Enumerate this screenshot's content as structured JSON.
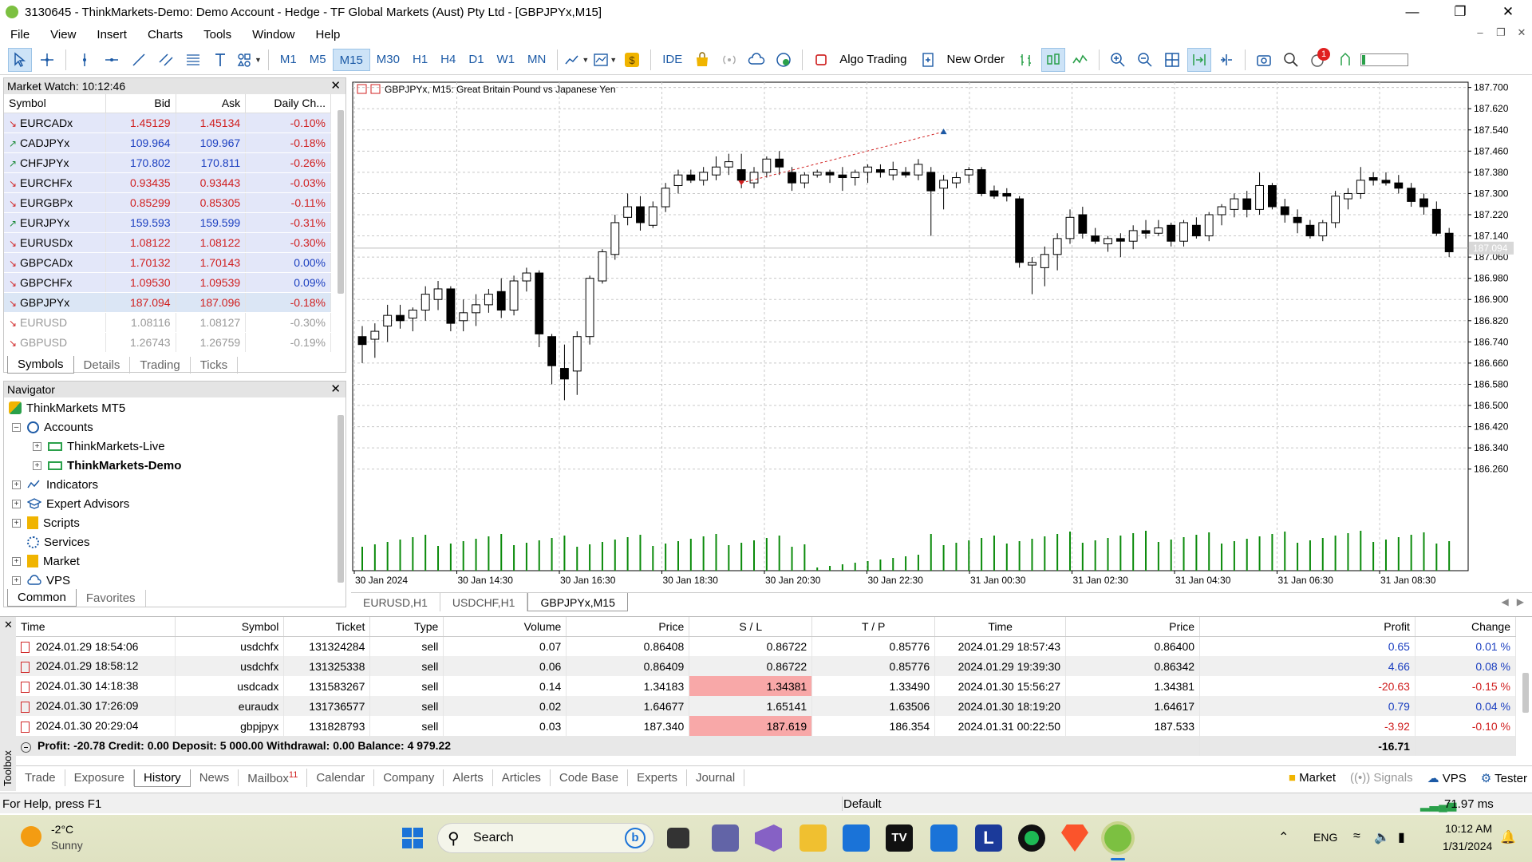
{
  "window": {
    "title": "3130645 - ThinkMarkets-Demo: Demo Account - Hedge - TF Global Markets (Aust) Pty Ltd - [GBPJPYx,M15]"
  },
  "menu": [
    "File",
    "View",
    "Insert",
    "Charts",
    "Tools",
    "Window",
    "Help"
  ],
  "toolbar": {
    "timeframes": [
      "M1",
      "M5",
      "M15",
      "M30",
      "H1",
      "H4",
      "D1",
      "W1",
      "MN"
    ],
    "selected_timeframe": "M15",
    "ide": "IDE",
    "algo_trading": "Algo Trading",
    "new_order": "New Order",
    "notification_count": "1"
  },
  "market_watch": {
    "title": "Market Watch: 10:12:46",
    "columns": [
      "Symbol",
      "Bid",
      "Ask",
      "Daily Ch..."
    ],
    "rows": [
      {
        "symbol": "EURCADx",
        "bid": "1.45129",
        "ask": "1.45134",
        "change": "-0.10%",
        "dir": "down"
      },
      {
        "symbol": "CADJPYx",
        "bid": "109.964",
        "ask": "109.967",
        "change": "-0.18%",
        "dir": "up"
      },
      {
        "symbol": "CHFJPYx",
        "bid": "170.802",
        "ask": "170.811",
        "change": "-0.26%",
        "dir": "up"
      },
      {
        "symbol": "EURCHFx",
        "bid": "0.93435",
        "ask": "0.93443",
        "change": "-0.03%",
        "dir": "down"
      },
      {
        "symbol": "EURGBPx",
        "bid": "0.85299",
        "ask": "0.85305",
        "change": "-0.11%",
        "dir": "down"
      },
      {
        "symbol": "EURJPYx",
        "bid": "159.593",
        "ask": "159.599",
        "change": "-0.31%",
        "dir": "up"
      },
      {
        "symbol": "EURUSDx",
        "bid": "1.08122",
        "ask": "1.08122",
        "change": "-0.30%",
        "dir": "down"
      },
      {
        "symbol": "GBPCADx",
        "bid": "1.70132",
        "ask": "1.70143",
        "change": "0.00%",
        "dir": "down"
      },
      {
        "symbol": "GBPCHFx",
        "bid": "1.09530",
        "ask": "1.09539",
        "change": "0.09%",
        "dir": "down"
      },
      {
        "symbol": "GBPJPYx",
        "bid": "187.094",
        "ask": "187.096",
        "change": "-0.18%",
        "dir": "down"
      },
      {
        "symbol": "EURUSD",
        "bid": "1.08116",
        "ask": "1.08127",
        "change": "-0.30%",
        "dir": "down"
      },
      {
        "symbol": "GBPUSD",
        "bid": "1.26743",
        "ask": "1.26759",
        "change": "-0.19%",
        "dir": "down"
      }
    ],
    "tabs": [
      "Symbols",
      "Details",
      "Trading",
      "Ticks"
    ]
  },
  "navigator": {
    "title": "Navigator",
    "root": "ThinkMarkets MT5",
    "items": [
      "Accounts",
      "ThinkMarkets-Live",
      "ThinkMarkets-Demo",
      "Indicators",
      "Expert Advisors",
      "Scripts",
      "Services",
      "Market",
      "VPS"
    ],
    "tabs": [
      "Common",
      "Favorites"
    ]
  },
  "chart": {
    "label": "GBPJPYx, M15:  Great Britain Pound vs Japanese Yen",
    "y_ticks": [
      "187.700",
      "187.620",
      "187.540",
      "187.460",
      "187.380",
      "187.300",
      "187.220",
      "187.140",
      "187.060",
      "186.980",
      "186.900",
      "186.820",
      "186.740",
      "186.660",
      "186.580",
      "186.500",
      "186.420",
      "186.340",
      "186.260"
    ],
    "x_ticks": [
      "30 Jan 2024",
      "30 Jan 14:30",
      "30 Jan 16:30",
      "30 Jan 18:30",
      "30 Jan 20:30",
      "30 Jan 22:30",
      "31 Jan 00:30",
      "31 Jan 02:30",
      "31 Jan 04:30",
      "31 Jan 06:30",
      "31 Jan 08:30"
    ],
    "current_price": "187.094",
    "tabs": [
      "EURUSD,H1",
      "USDCHF,H1",
      "GBPJPYx,M15"
    ]
  },
  "chart_data": {
    "type": "candlestick",
    "ylim": [
      186.22,
      187.72
    ],
    "candles": [
      [
        186.76,
        186.8,
        186.66,
        186.73
      ],
      [
        186.75,
        186.81,
        186.68,
        186.78
      ],
      [
        186.8,
        186.88,
        186.74,
        186.84
      ],
      [
        186.84,
        186.88,
        186.79,
        186.82
      ],
      [
        186.83,
        186.87,
        186.78,
        186.86
      ],
      [
        186.86,
        186.95,
        186.82,
        186.92
      ],
      [
        186.9,
        186.97,
        186.86,
        186.94
      ],
      [
        186.94,
        186.95,
        186.78,
        186.81
      ],
      [
        186.82,
        186.9,
        186.78,
        186.85
      ],
      [
        186.85,
        186.92,
        186.8,
        186.88
      ],
      [
        186.88,
        186.94,
        186.85,
        186.92
      ],
      [
        186.93,
        186.98,
        186.83,
        186.86
      ],
      [
        186.86,
        186.99,
        186.84,
        186.97
      ],
      [
        186.97,
        187.02,
        186.93,
        187.0
      ],
      [
        187.0,
        187.01,
        186.72,
        186.77
      ],
      [
        186.76,
        186.77,
        186.58,
        186.65
      ],
      [
        186.64,
        186.73,
        186.52,
        186.6
      ],
      [
        186.63,
        186.78,
        186.54,
        186.76
      ],
      [
        186.76,
        186.99,
        186.73,
        186.98
      ],
      [
        186.97,
        187.09,
        186.96,
        187.08
      ],
      [
        187.07,
        187.22,
        187.05,
        187.19
      ],
      [
        187.21,
        187.3,
        187.18,
        187.25
      ],
      [
        187.25,
        187.29,
        187.16,
        187.19
      ],
      [
        187.18,
        187.27,
        187.17,
        187.25
      ],
      [
        187.25,
        187.34,
        187.23,
        187.32
      ],
      [
        187.33,
        187.39,
        187.3,
        187.37
      ],
      [
        187.37,
        187.39,
        187.34,
        187.35
      ],
      [
        187.35,
        187.4,
        187.33,
        187.38
      ],
      [
        187.37,
        187.44,
        187.35,
        187.4
      ],
      [
        187.4,
        187.45,
        187.37,
        187.42
      ],
      [
        187.39,
        187.45,
        187.32,
        187.35
      ],
      [
        187.34,
        187.4,
        187.32,
        187.38
      ],
      [
        187.38,
        187.44,
        187.36,
        187.43
      ],
      [
        187.43,
        187.46,
        187.37,
        187.4
      ],
      [
        187.38,
        187.4,
        187.31,
        187.34
      ],
      [
        187.34,
        187.38,
        187.32,
        187.37
      ],
      [
        187.37,
        187.39,
        187.36,
        187.38
      ],
      [
        187.38,
        187.39,
        187.34,
        187.37
      ],
      [
        187.37,
        187.4,
        187.31,
        187.36
      ],
      [
        187.36,
        187.39,
        187.33,
        187.38
      ],
      [
        187.38,
        187.41,
        187.34,
        187.4
      ],
      [
        187.39,
        187.41,
        187.36,
        187.38
      ],
      [
        187.37,
        187.42,
        187.35,
        187.39
      ],
      [
        187.38,
        187.4,
        187.36,
        187.37
      ],
      [
        187.37,
        187.43,
        187.35,
        187.41
      ],
      [
        187.38,
        187.4,
        187.14,
        187.31
      ],
      [
        187.32,
        187.37,
        187.24,
        187.35
      ],
      [
        187.34,
        187.38,
        187.32,
        187.36
      ],
      [
        187.37,
        187.4,
        187.34,
        187.39
      ],
      [
        187.39,
        187.4,
        187.29,
        187.3
      ],
      [
        187.31,
        187.33,
        187.28,
        187.29
      ],
      [
        187.3,
        187.32,
        187.27,
        187.29
      ],
      [
        187.28,
        187.29,
        187.02,
        187.04
      ],
      [
        187.03,
        187.06,
        186.92,
        187.04
      ],
      [
        187.02,
        187.1,
        186.95,
        187.07
      ],
      [
        187.07,
        187.15,
        187.01,
        187.13
      ],
      [
        187.13,
        187.24,
        187.11,
        187.21
      ],
      [
        187.22,
        187.25,
        187.13,
        187.15
      ],
      [
        187.14,
        187.17,
        187.11,
        187.12
      ],
      [
        187.11,
        187.14,
        187.08,
        187.13
      ],
      [
        187.13,
        187.15,
        187.06,
        187.12
      ],
      [
        187.12,
        187.18,
        187.09,
        187.16
      ],
      [
        187.16,
        187.2,
        187.13,
        187.15
      ],
      [
        187.15,
        187.2,
        187.14,
        187.17
      ],
      [
        187.18,
        187.19,
        187.1,
        187.12
      ],
      [
        187.12,
        187.2,
        187.1,
        187.19
      ],
      [
        187.18,
        187.21,
        187.13,
        187.14
      ],
      [
        187.14,
        187.23,
        187.12,
        187.22
      ],
      [
        187.22,
        187.26,
        187.18,
        187.25
      ],
      [
        187.24,
        187.3,
        187.21,
        187.28
      ],
      [
        187.28,
        187.31,
        187.21,
        187.24
      ],
      [
        187.24,
        187.38,
        187.22,
        187.33
      ],
      [
        187.33,
        187.34,
        187.24,
        187.25
      ],
      [
        187.25,
        187.28,
        187.19,
        187.22
      ],
      [
        187.21,
        187.24,
        187.15,
        187.19
      ],
      [
        187.18,
        187.2,
        187.13,
        187.14
      ],
      [
        187.14,
        187.2,
        187.12,
        187.19
      ],
      [
        187.19,
        187.31,
        187.17,
        187.29
      ],
      [
        187.28,
        187.32,
        187.24,
        187.3
      ],
      [
        187.3,
        187.4,
        187.28,
        187.35
      ],
      [
        187.36,
        187.38,
        187.33,
        187.35
      ],
      [
        187.35,
        187.38,
        187.33,
        187.34
      ],
      [
        187.34,
        187.37,
        187.3,
        187.32
      ],
      [
        187.32,
        187.34,
        187.25,
        187.27
      ],
      [
        187.28,
        187.3,
        187.22,
        187.25
      ],
      [
        187.24,
        187.27,
        187.14,
        187.15
      ],
      [
        187.15,
        187.17,
        187.06,
        187.08
      ]
    ],
    "x_labels": [
      "30 Jan 2024",
      "30 Jan 14:30",
      "30 Jan 16:30",
      "30 Jan 18:30",
      "30 Jan 20:30",
      "30 Jan 22:30",
      "31 Jan 00:30",
      "31 Jan 02:30",
      "31 Jan 04:30",
      "31 Jan 06:30",
      "31 Jan 08:30"
    ]
  },
  "history": {
    "columns": [
      "Time",
      "Symbol",
      "Ticket",
      "Type",
      "Volume",
      "Price",
      "S / L",
      "T / P",
      "Time",
      "Price",
      "Profit",
      "Change"
    ],
    "rows": [
      {
        "time": "2024.01.29 18:54:06",
        "symbol": "usdchfx",
        "ticket": "131324284",
        "type": "sell",
        "volume": "0.07",
        "price": "0.86408",
        "sl": "0.86722",
        "tp": "0.85776",
        "ctime": "2024.01.29 18:57:43",
        "cprice": "0.86400",
        "profit": "0.65",
        "change": "0.01 %",
        "sl_hit": false,
        "neg": false
      },
      {
        "time": "2024.01.29 18:58:12",
        "symbol": "usdchfx",
        "ticket": "131325338",
        "type": "sell",
        "volume": "0.06",
        "price": "0.86409",
        "sl": "0.86722",
        "tp": "0.85776",
        "ctime": "2024.01.29 19:39:30",
        "cprice": "0.86342",
        "profit": "4.66",
        "change": "0.08 %",
        "sl_hit": false,
        "neg": false
      },
      {
        "time": "2024.01.30 14:18:38",
        "symbol": "usdcadx",
        "ticket": "131583267",
        "type": "sell",
        "volume": "0.14",
        "price": "1.34183",
        "sl": "1.34381",
        "tp": "1.33490",
        "ctime": "2024.01.30 15:56:27",
        "cprice": "1.34381",
        "profit": "-20.63",
        "change": "-0.15 %",
        "sl_hit": true,
        "neg": true
      },
      {
        "time": "2024.01.30 17:26:09",
        "symbol": "euraudx",
        "ticket": "131736577",
        "type": "sell",
        "volume": "0.02",
        "price": "1.64677",
        "sl": "1.65141",
        "tp": "1.63506",
        "ctime": "2024.01.30 18:19:20",
        "cprice": "1.64617",
        "profit": "0.79",
        "change": "0.04 %",
        "sl_hit": false,
        "neg": false
      },
      {
        "time": "2024.01.30 20:29:04",
        "symbol": "gbpjpyx",
        "ticket": "131828793",
        "type": "sell",
        "volume": "0.03",
        "price": "187.340",
        "sl": "187.619",
        "tp": "186.354",
        "ctime": "2024.01.31 00:22:50",
        "cprice": "187.533",
        "profit": "-3.92",
        "change": "-0.10 %",
        "sl_hit": true,
        "neg": true
      }
    ],
    "summary": "Profit: -20.78  Credit: 0.00  Deposit: 5 000.00  Withdrawal: 0.00  Balance: 4 979.22",
    "summary_total": "-16.71"
  },
  "toolbox": {
    "label": "Toolbox",
    "tabs": [
      "Trade",
      "Exposure",
      "History",
      "News",
      "Mailbox",
      "Calendar",
      "Company",
      "Alerts",
      "Articles",
      "Code Base",
      "Experts",
      "Journal"
    ],
    "mailbox_count": "11",
    "active_tab": "History",
    "right": [
      "Market",
      "Signals",
      "VPS",
      "Tester"
    ]
  },
  "status": {
    "help": "For Help, press F1",
    "profile": "Default",
    "ping": "71.97 ms"
  },
  "taskbar": {
    "temp": "-2°C",
    "weather": "Sunny",
    "search": "Search",
    "lang": "ENG",
    "time": "10:12 AM",
    "date": "1/31/2024"
  },
  "colors": {
    "accent": "#1c5aa6",
    "bid_red": "#d02020",
    "bid_blue": "#1b3fc0",
    "volume_green": "#0a8a0a",
    "sl_red": "#f8a8a8"
  }
}
